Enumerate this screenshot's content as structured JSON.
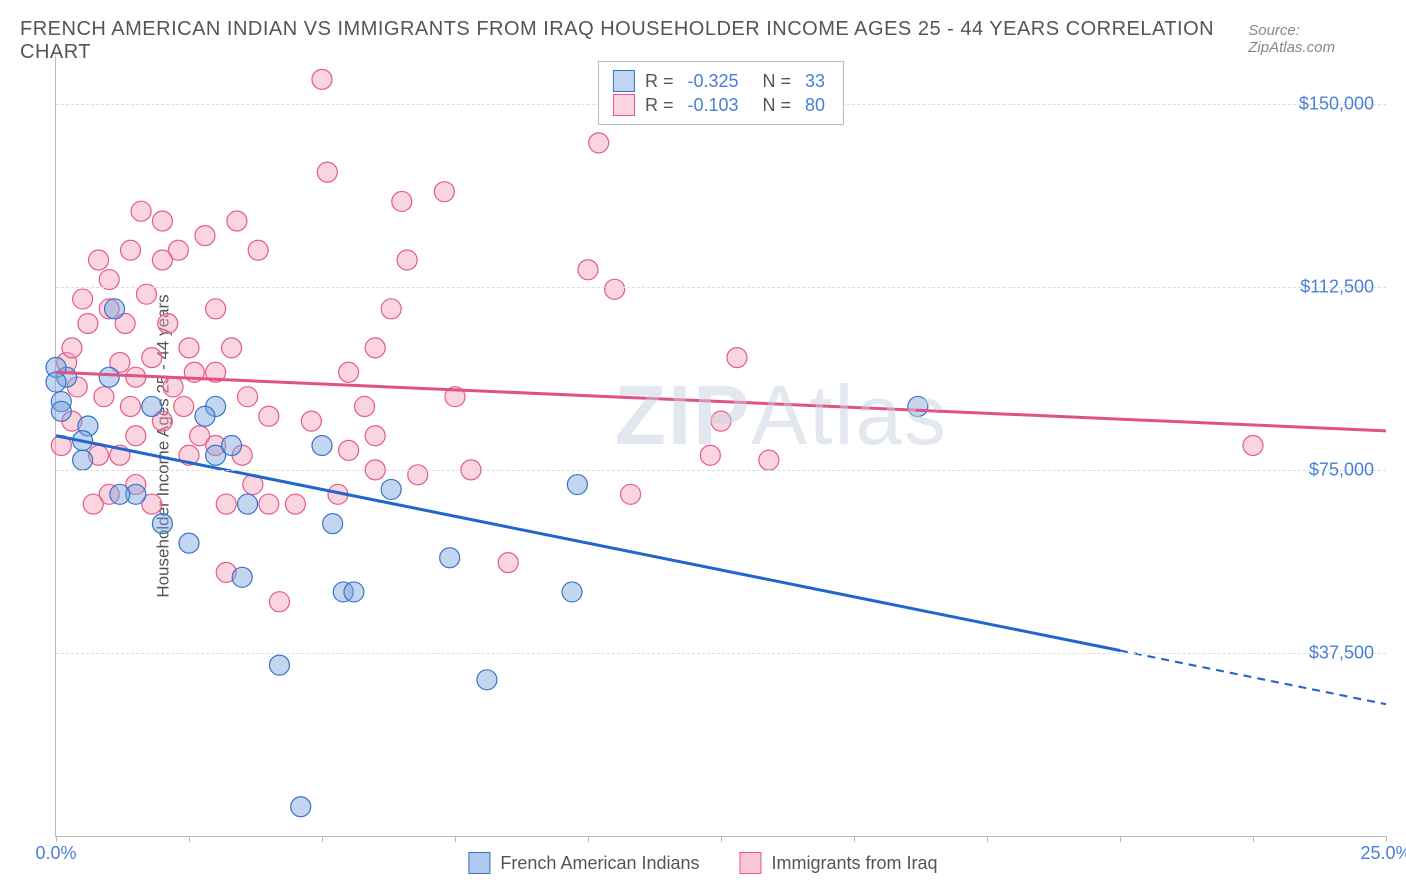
{
  "title": "FRENCH AMERICAN INDIAN VS IMMIGRANTS FROM IRAQ HOUSEHOLDER INCOME AGES 25 - 44 YEARS CORRELATION CHART",
  "source": "Source: ZipAtlas.com",
  "watermark_bold": "ZIP",
  "watermark_rest": "Atlas",
  "y_axis_label": "Householder Income Ages 25 - 44 years",
  "x_axis": {
    "min": 0,
    "max": 25,
    "tick_positions": [
      0,
      2.5,
      5,
      7.5,
      10,
      12.5,
      15,
      17.5,
      20,
      22.5,
      25
    ],
    "tick_labels_shown": {
      "0": "0.0%",
      "25": "25.0%"
    }
  },
  "y_axis": {
    "min": 0,
    "max": 160000,
    "gridlines": [
      37500,
      75000,
      112500,
      150000
    ],
    "tick_labels": {
      "37500": "$37,500",
      "75000": "$75,000",
      "112500": "$112,500",
      "150000": "$150,000"
    }
  },
  "series": [
    {
      "name": "French American Indians",
      "color_fill": "rgba(120,165,225,0.45)",
      "color_stroke": "#3a72c9",
      "line_color": "#2266cc",
      "line_width": 3,
      "marker_radius": 10,
      "R": "-0.325",
      "N": "33",
      "regression": {
        "x1": 0,
        "y1": 82000,
        "x2_solid": 20,
        "y2_solid": 38000,
        "x2_dash": 25,
        "y2_dash": 27000
      },
      "points": [
        [
          0.2,
          94000
        ],
        [
          0.1,
          89000
        ],
        [
          0.1,
          87000
        ],
        [
          0.0,
          96000
        ],
        [
          0.0,
          93000
        ],
        [
          1.1,
          108000
        ],
        [
          0.6,
          84000
        ],
        [
          1.0,
          94000
        ],
        [
          0.5,
          81000
        ],
        [
          0.5,
          77000
        ],
        [
          1.8,
          88000
        ],
        [
          1.5,
          70000
        ],
        [
          1.2,
          70000
        ],
        [
          3.0,
          88000
        ],
        [
          2.8,
          86000
        ],
        [
          3.0,
          78000
        ],
        [
          3.3,
          80000
        ],
        [
          3.6,
          68000
        ],
        [
          2.5,
          60000
        ],
        [
          2.0,
          64000
        ],
        [
          3.5,
          53000
        ],
        [
          4.2,
          35000
        ],
        [
          4.6,
          6000
        ],
        [
          5.0,
          80000
        ],
        [
          5.2,
          64000
        ],
        [
          5.4,
          50000
        ],
        [
          5.6,
          50000
        ],
        [
          6.3,
          71000
        ],
        [
          7.4,
          57000
        ],
        [
          8.1,
          32000
        ],
        [
          9.8,
          72000
        ],
        [
          9.7,
          50000
        ],
        [
          16.2,
          88000
        ]
      ]
    },
    {
      "name": "Immigrants from Iraq",
      "color_fill": "rgba(245,160,185,0.45)",
      "color_stroke": "#e65a8a",
      "line_color": "#e05285",
      "line_width": 3,
      "marker_radius": 10,
      "R": "-0.103",
      "N": "80",
      "regression": {
        "x1": 0,
        "y1": 95000,
        "x2_solid": 25,
        "y2_solid": 83000,
        "x2_dash": 25,
        "y2_dash": 83000
      },
      "points": [
        [
          0.2,
          97000
        ],
        [
          0.3,
          100000
        ],
        [
          0.4,
          92000
        ],
        [
          0.5,
          110000
        ],
        [
          0.6,
          105000
        ],
        [
          0.3,
          85000
        ],
        [
          0.8,
          118000
        ],
        [
          1.0,
          108000
        ],
        [
          0.9,
          90000
        ],
        [
          1.0,
          114000
        ],
        [
          1.2,
          97000
        ],
        [
          1.3,
          105000
        ],
        [
          1.4,
          120000
        ],
        [
          1.5,
          82000
        ],
        [
          1.5,
          94000
        ],
        [
          1.6,
          128000
        ],
        [
          1.7,
          111000
        ],
        [
          1.8,
          98000
        ],
        [
          2.0,
          126000
        ],
        [
          2.0,
          85000
        ],
        [
          2.1,
          105000
        ],
        [
          1.0,
          70000
        ],
        [
          1.2,
          78000
        ],
        [
          0.7,
          68000
        ],
        [
          2.3,
          120000
        ],
        [
          2.4,
          88000
        ],
        [
          2.5,
          100000
        ],
        [
          2.5,
          78000
        ],
        [
          2.6,
          95000
        ],
        [
          2.7,
          82000
        ],
        [
          2.8,
          123000
        ],
        [
          3.0,
          108000
        ],
        [
          3.0,
          95000
        ],
        [
          3.0,
          80000
        ],
        [
          3.2,
          68000
        ],
        [
          3.3,
          100000
        ],
        [
          3.4,
          126000
        ],
        [
          3.5,
          78000
        ],
        [
          3.6,
          90000
        ],
        [
          3.8,
          120000
        ],
        [
          3.7,
          72000
        ],
        [
          4.0,
          86000
        ],
        [
          4.2,
          48000
        ],
        [
          4.5,
          68000
        ],
        [
          5.0,
          155000
        ],
        [
          5.1,
          136000
        ],
        [
          5.5,
          95000
        ],
        [
          5.5,
          79000
        ],
        [
          5.8,
          88000
        ],
        [
          6.0,
          75000
        ],
        [
          6.0,
          100000
        ],
        [
          6.3,
          108000
        ],
        [
          6.5,
          130000
        ],
        [
          6.6,
          118000
        ],
        [
          6.8,
          74000
        ],
        [
          7.3,
          132000
        ],
        [
          7.5,
          90000
        ],
        [
          7.8,
          75000
        ],
        [
          8.5,
          56000
        ],
        [
          10.0,
          116000
        ],
        [
          10.2,
          142000
        ],
        [
          10.5,
          112000
        ],
        [
          10.8,
          70000
        ],
        [
          12.3,
          78000
        ],
        [
          12.5,
          85000
        ],
        [
          13.4,
          77000
        ],
        [
          12.8,
          98000
        ],
        [
          22.5,
          80000
        ],
        [
          2.0,
          118000
        ],
        [
          1.8,
          68000
        ],
        [
          4.0,
          68000
        ],
        [
          3.2,
          54000
        ],
        [
          0.1,
          80000
        ],
        [
          0.8,
          78000
        ],
        [
          1.5,
          72000
        ],
        [
          1.4,
          88000
        ],
        [
          2.2,
          92000
        ],
        [
          4.8,
          85000
        ],
        [
          5.3,
          70000
        ],
        [
          6.0,
          82000
        ]
      ]
    }
  ],
  "legend_bottom": [
    {
      "label": "French American Indians",
      "fill": "rgba(120,165,225,0.6)",
      "stroke": "#3a72c9"
    },
    {
      "label": "Immigrants from Iraq",
      "fill": "rgba(245,160,185,0.6)",
      "stroke": "#e65a8a"
    }
  ],
  "colors": {
    "label_blue": "#4a7fd8",
    "text_gray": "#555",
    "grid": "#ddd"
  }
}
